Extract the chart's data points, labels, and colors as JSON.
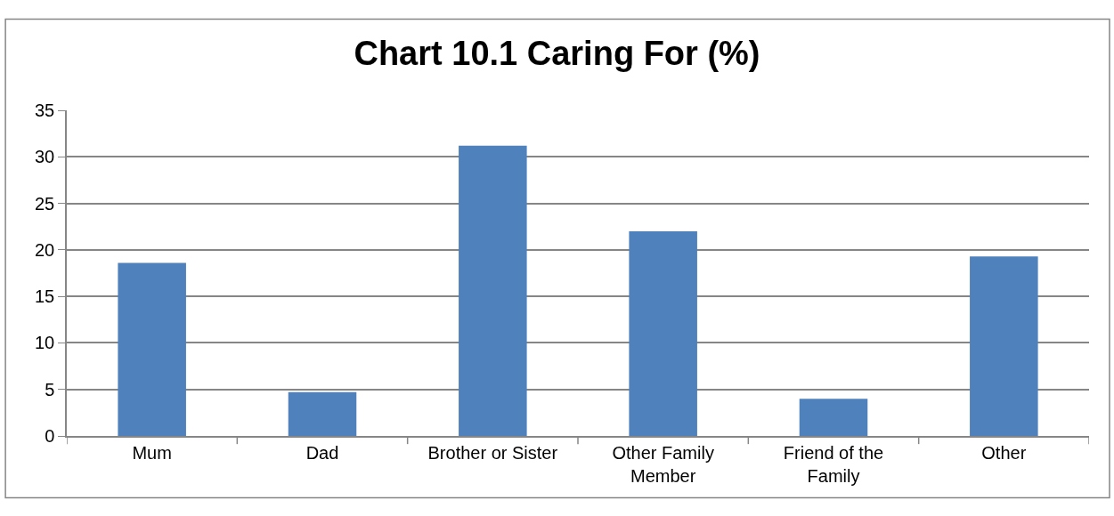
{
  "chart_data": {
    "type": "bar",
    "title": "Chart 10.1 Caring For (%)",
    "categories": [
      "Mum",
      "Dad",
      "Brother or Sister",
      "Other Family Member",
      "Friend of the Family",
      "Other"
    ],
    "values": [
      18.6,
      4.7,
      31.2,
      22.0,
      4.0,
      19.3
    ],
    "color": "#4f81bd",
    "ylim": [
      0,
      35
    ],
    "yticks": [
      0,
      5,
      10,
      15,
      20,
      25,
      30,
      35
    ],
    "grid": "y"
  }
}
